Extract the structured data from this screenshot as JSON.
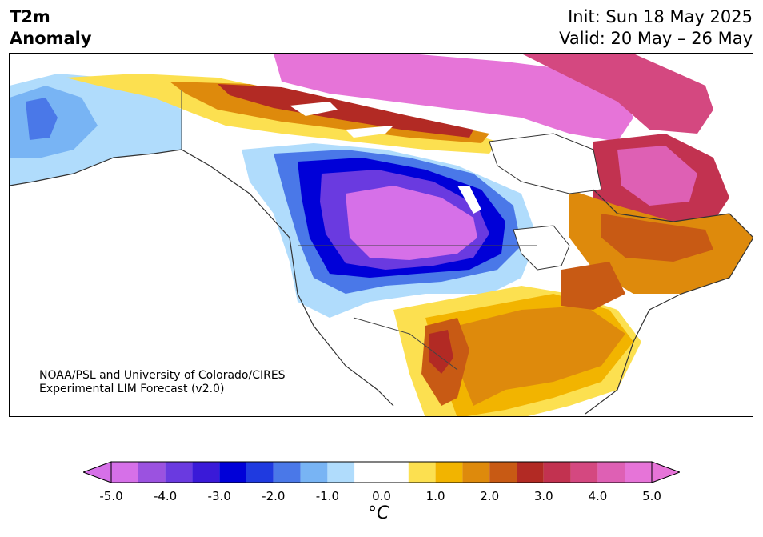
{
  "header": {
    "title_line1": "T2m",
    "title_line2": "Anomaly",
    "init": "Init: Sun 18 May 2025",
    "valid": "Valid: 20 May – 26 May"
  },
  "credit": {
    "line1": "NOAA/PSL and University of Colorado/CIRES",
    "line2": "Experimental LIM Forecast (v2.0)"
  },
  "colorbar": {
    "ticks": [
      "-5.0",
      "-4.0",
      "-3.0",
      "-2.0",
      "-1.0",
      "0.0",
      "1.0",
      "2.0",
      "3.0",
      "4.0",
      "5.0"
    ],
    "unit": "°C",
    "bin_edges": [
      -5.0,
      -4.5,
      -4.0,
      -3.5,
      -3.0,
      -2.5,
      -2.0,
      -1.5,
      -1.0,
      -0.5,
      0.5,
      1.0,
      1.5,
      2.0,
      2.5,
      3.0,
      3.5,
      4.0,
      4.5,
      5.0
    ],
    "colors": [
      "#d670e8",
      "#9b52e0",
      "#6a3ae0",
      "#3a1ad8",
      "#0000d8",
      "#1f3ae0",
      "#4a78e8",
      "#78b4f4",
      "#b0dcfc",
      "#ffffff",
      "#fce050",
      "#f2b400",
      "#de8a0c",
      "#c85a14",
      "#b22a24",
      "#c23250",
      "#d44880",
      "#de60b4",
      "#e674d8"
    ],
    "under_color": "#d670e8",
    "over_color": "#e674d8"
  }
}
